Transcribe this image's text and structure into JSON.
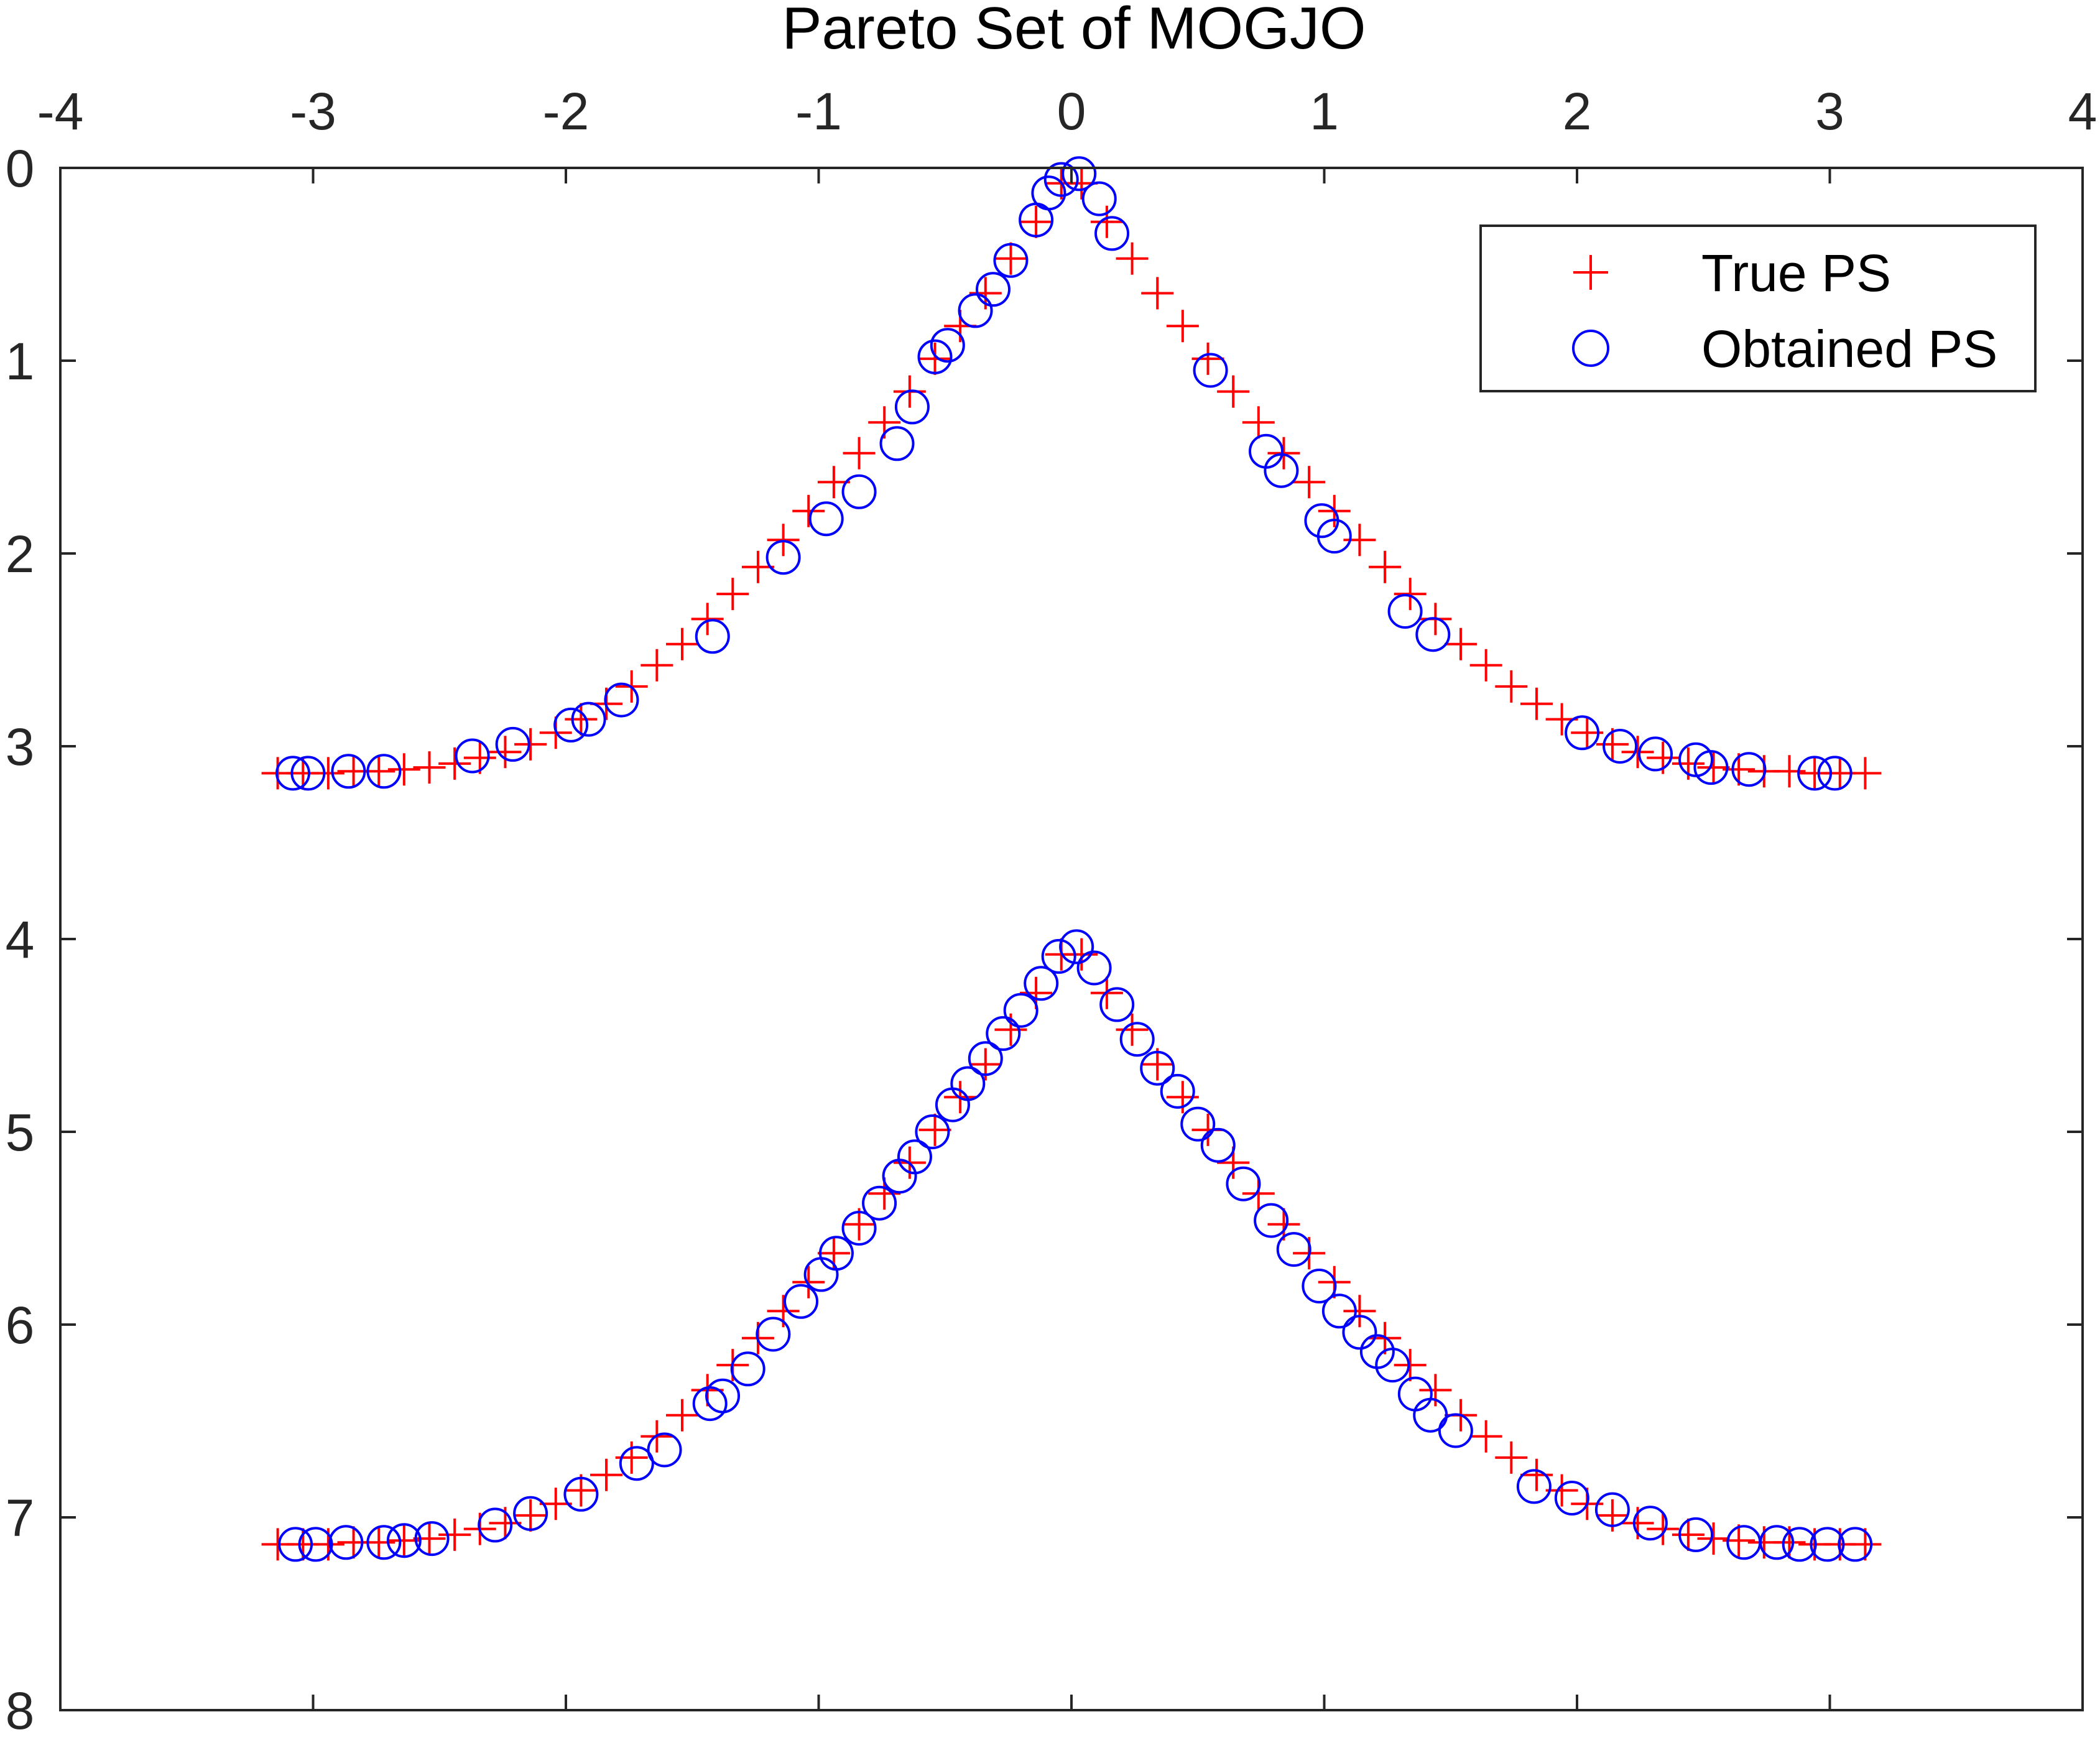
{
  "chart_data": {
    "type": "scatter",
    "title": "Pareto Set of MOGJO",
    "xlabel": "",
    "ylabel": "",
    "xlim": [
      -4,
      4
    ],
    "ylim": [
      0,
      8
    ],
    "y_reversed": true,
    "x_axis_location": "top",
    "x_ticks": [
      -4,
      -3,
      -2,
      -1,
      0,
      1,
      2,
      3,
      4
    ],
    "x_tick_labels": [
      "-4",
      "-3",
      "-2",
      "-1",
      "0",
      "1",
      "2",
      "3",
      "4"
    ],
    "y_ticks": [
      0,
      1,
      2,
      3,
      4,
      5,
      6,
      7,
      8
    ],
    "y_tick_labels": [
      "0",
      "1",
      "2",
      "3",
      "4",
      "5",
      "6",
      "7",
      "8"
    ],
    "grid": false,
    "legend_position": "top-right",
    "series": [
      {
        "name": "True PS",
        "marker": "plus",
        "color": "#ff0000",
        "points": [
          [
            -3.14,
            3.14
          ],
          [
            -3.04,
            3.14
          ],
          [
            -2.94,
            3.14
          ],
          [
            -2.84,
            3.13
          ],
          [
            -2.74,
            3.13
          ],
          [
            -2.64,
            3.12
          ],
          [
            -2.54,
            3.11
          ],
          [
            -2.44,
            3.09
          ],
          [
            -2.34,
            3.06
          ],
          [
            -2.24,
            3.03
          ],
          [
            -2.14,
            2.99
          ],
          [
            -2.04,
            2.93
          ],
          [
            -1.94,
            2.86
          ],
          [
            -1.84,
            2.78
          ],
          [
            -1.74,
            2.69
          ],
          [
            -1.64,
            2.58
          ],
          [
            -1.54,
            2.47
          ],
          [
            -1.44,
            2.34
          ],
          [
            -1.34,
            2.21
          ],
          [
            -1.24,
            2.07
          ],
          [
            -1.14,
            1.93
          ],
          [
            -1.04,
            1.78
          ],
          [
            -0.94,
            1.63
          ],
          [
            -0.84,
            1.48
          ],
          [
            -0.74,
            1.32
          ],
          [
            -0.64,
            1.16
          ],
          [
            -0.54,
            0.99
          ],
          [
            -0.44,
            0.82
          ],
          [
            -0.34,
            0.65
          ],
          [
            -0.24,
            0.47
          ],
          [
            -0.14,
            0.28
          ],
          [
            -0.04,
            0.08
          ],
          [
            0.04,
            0.08
          ],
          [
            0.14,
            0.28
          ],
          [
            0.24,
            0.47
          ],
          [
            0.34,
            0.65
          ],
          [
            0.44,
            0.82
          ],
          [
            0.54,
            0.99
          ],
          [
            0.64,
            1.16
          ],
          [
            0.74,
            1.32
          ],
          [
            0.84,
            1.48
          ],
          [
            0.94,
            1.63
          ],
          [
            1.04,
            1.78
          ],
          [
            1.14,
            1.93
          ],
          [
            1.24,
            2.07
          ],
          [
            1.34,
            2.21
          ],
          [
            1.44,
            2.34
          ],
          [
            1.54,
            2.47
          ],
          [
            1.64,
            2.58
          ],
          [
            1.74,
            2.69
          ],
          [
            1.84,
            2.78
          ],
          [
            1.94,
            2.86
          ],
          [
            2.04,
            2.93
          ],
          [
            2.14,
            2.99
          ],
          [
            2.24,
            3.03
          ],
          [
            2.34,
            3.06
          ],
          [
            2.44,
            3.09
          ],
          [
            2.54,
            3.11
          ],
          [
            2.64,
            3.12
          ],
          [
            2.74,
            3.13
          ],
          [
            2.84,
            3.13
          ],
          [
            2.94,
            3.14
          ],
          [
            3.04,
            3.14
          ],
          [
            3.14,
            3.14
          ],
          [
            -3.14,
            7.14
          ],
          [
            -3.04,
            7.14
          ],
          [
            -2.94,
            7.14
          ],
          [
            -2.84,
            7.13
          ],
          [
            -2.74,
            7.13
          ],
          [
            -2.64,
            7.12
          ],
          [
            -2.54,
            7.11
          ],
          [
            -2.44,
            7.09
          ],
          [
            -2.34,
            7.06
          ],
          [
            -2.24,
            7.03
          ],
          [
            -2.14,
            6.99
          ],
          [
            -2.04,
            6.93
          ],
          [
            -1.94,
            6.86
          ],
          [
            -1.84,
            6.78
          ],
          [
            -1.74,
            6.69
          ],
          [
            -1.64,
            6.58
          ],
          [
            -1.54,
            6.47
          ],
          [
            -1.44,
            6.34
          ],
          [
            -1.34,
            6.21
          ],
          [
            -1.24,
            6.07
          ],
          [
            -1.14,
            5.93
          ],
          [
            -1.04,
            5.78
          ],
          [
            -0.94,
            5.63
          ],
          [
            -0.84,
            5.48
          ],
          [
            -0.74,
            5.32
          ],
          [
            -0.64,
            5.16
          ],
          [
            -0.54,
            4.99
          ],
          [
            -0.44,
            4.82
          ],
          [
            -0.34,
            4.65
          ],
          [
            -0.24,
            4.47
          ],
          [
            -0.14,
            4.28
          ],
          [
            -0.04,
            4.08
          ],
          [
            0.04,
            4.08
          ],
          [
            0.14,
            4.28
          ],
          [
            0.24,
            4.47
          ],
          [
            0.34,
            4.65
          ],
          [
            0.44,
            4.82
          ],
          [
            0.54,
            4.99
          ],
          [
            0.64,
            5.16
          ],
          [
            0.74,
            5.32
          ],
          [
            0.84,
            5.48
          ],
          [
            0.94,
            5.63
          ],
          [
            1.04,
            5.78
          ],
          [
            1.14,
            5.93
          ],
          [
            1.24,
            6.07
          ],
          [
            1.34,
            6.21
          ],
          [
            1.44,
            6.34
          ],
          [
            1.54,
            6.47
          ],
          [
            1.64,
            6.58
          ],
          [
            1.74,
            6.69
          ],
          [
            1.84,
            6.78
          ],
          [
            1.94,
            6.86
          ],
          [
            2.04,
            6.93
          ],
          [
            2.14,
            6.99
          ],
          [
            2.24,
            7.03
          ],
          [
            2.34,
            7.06
          ],
          [
            2.44,
            7.09
          ],
          [
            2.54,
            7.11
          ],
          [
            2.64,
            7.12
          ],
          [
            2.74,
            7.13
          ],
          [
            2.84,
            7.13
          ],
          [
            2.94,
            7.14
          ],
          [
            3.04,
            7.14
          ],
          [
            3.14,
            7.14
          ]
        ]
      },
      {
        "name": "Obtained PS",
        "marker": "circle",
        "color": "#0000ff",
        "points": [
          [
            -3.08,
            3.14
          ],
          [
            -3.02,
            3.14
          ],
          [
            -2.86,
            3.13
          ],
          [
            -2.72,
            3.13
          ],
          [
            -2.37,
            3.05
          ],
          [
            -2.21,
            2.99
          ],
          [
            -1.98,
            2.89
          ],
          [
            -1.91,
            2.86
          ],
          [
            -1.78,
            2.76
          ],
          [
            -1.42,
            2.43
          ],
          [
            -1.14,
            2.02
          ],
          [
            -0.97,
            1.82
          ],
          [
            -0.84,
            1.68
          ],
          [
            -0.69,
            1.43
          ],
          [
            -0.63,
            1.24
          ],
          [
            -0.54,
            0.98
          ],
          [
            -0.49,
            0.92
          ],
          [
            -0.38,
            0.74
          ],
          [
            -0.31,
            0.63
          ],
          [
            -0.24,
            0.48
          ],
          [
            -0.14,
            0.27
          ],
          [
            -0.09,
            0.13
          ],
          [
            -0.04,
            0.06
          ],
          [
            0.03,
            0.03
          ],
          [
            0.11,
            0.16
          ],
          [
            0.16,
            0.34
          ],
          [
            0.55,
            1.05
          ],
          [
            0.77,
            1.47
          ],
          [
            0.83,
            1.57
          ],
          [
            0.99,
            1.83
          ],
          [
            1.04,
            1.91
          ],
          [
            1.32,
            2.3
          ],
          [
            1.43,
            2.42
          ],
          [
            2.02,
            2.93
          ],
          [
            2.17,
            3.0
          ],
          [
            2.31,
            3.04
          ],
          [
            2.47,
            3.07
          ],
          [
            2.53,
            3.11
          ],
          [
            2.68,
            3.12
          ],
          [
            2.94,
            3.14
          ],
          [
            3.02,
            3.14
          ],
          [
            -3.07,
            7.14
          ],
          [
            -2.99,
            7.14
          ],
          [
            -2.87,
            7.13
          ],
          [
            -2.72,
            7.13
          ],
          [
            -2.64,
            7.12
          ],
          [
            -2.53,
            7.11
          ],
          [
            -2.28,
            7.04
          ],
          [
            -2.14,
            6.98
          ],
          [
            -1.94,
            6.88
          ],
          [
            -1.72,
            6.72
          ],
          [
            -1.61,
            6.65
          ],
          [
            -1.43,
            6.41
          ],
          [
            -1.38,
            6.37
          ],
          [
            -1.28,
            6.23
          ],
          [
            -1.18,
            6.05
          ],
          [
            -1.07,
            5.88
          ],
          [
            -0.99,
            5.74
          ],
          [
            -0.93,
            5.63
          ],
          [
            -0.84,
            5.5
          ],
          [
            -0.76,
            5.37
          ],
          [
            -0.68,
            5.23
          ],
          [
            -0.62,
            5.13
          ],
          [
            -0.55,
            5.0
          ],
          [
            -0.47,
            4.86
          ],
          [
            -0.41,
            4.75
          ],
          [
            -0.34,
            4.62
          ],
          [
            -0.27,
            4.49
          ],
          [
            -0.2,
            4.37
          ],
          [
            -0.12,
            4.23
          ],
          [
            -0.05,
            4.09
          ],
          [
            0.02,
            4.04
          ],
          [
            0.09,
            4.15
          ],
          [
            0.18,
            4.34
          ],
          [
            0.26,
            4.52
          ],
          [
            0.34,
            4.67
          ],
          [
            0.42,
            4.79
          ],
          [
            0.5,
            4.96
          ],
          [
            0.58,
            5.07
          ],
          [
            0.68,
            5.27
          ],
          [
            0.79,
            5.46
          ],
          [
            0.88,
            5.61
          ],
          [
            0.98,
            5.8
          ],
          [
            1.06,
            5.93
          ],
          [
            1.14,
            6.04
          ],
          [
            1.21,
            6.14
          ],
          [
            1.27,
            6.21
          ],
          [
            1.36,
            6.36
          ],
          [
            1.42,
            6.47
          ],
          [
            1.52,
            6.55
          ],
          [
            1.83,
            6.84
          ],
          [
            1.98,
            6.9
          ],
          [
            2.14,
            6.96
          ],
          [
            2.29,
            7.03
          ],
          [
            2.47,
            7.09
          ],
          [
            2.66,
            7.13
          ],
          [
            2.79,
            7.13
          ],
          [
            2.88,
            7.14
          ],
          [
            2.99,
            7.14
          ],
          [
            3.1,
            7.14
          ]
        ]
      }
    ]
  },
  "colors": {
    "axis": "#262626",
    "true_ps": "#ff0000",
    "obtained_ps": "#0000ff",
    "background": "#ffffff"
  }
}
